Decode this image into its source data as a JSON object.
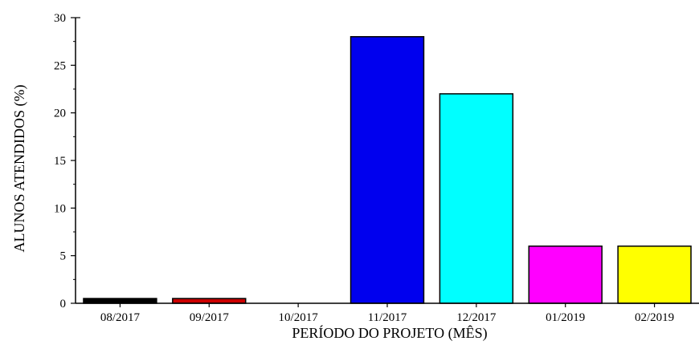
{
  "chart_data": {
    "type": "bar",
    "title": "",
    "xlabel": "PERÍODO DO PROJETO (MÊS)",
    "ylabel": "ALUNOS ATENDIDOS (%)",
    "categories": [
      "08/2017",
      "09/2017",
      "10/2017",
      "11/2017",
      "12/2017",
      "01/2019",
      "02/2019"
    ],
    "values": [
      0.5,
      0.5,
      0,
      28,
      22,
      6,
      6
    ],
    "colors": [
      "#000000",
      "#cc0000",
      "#ffffff",
      "#0000ee",
      "#00ffff",
      "#ff00ff",
      "#ffff00"
    ],
    "ylim": [
      0,
      30
    ],
    "yticks": [
      0,
      5,
      10,
      15,
      20,
      25,
      30
    ],
    "ytick_labels": [
      "0",
      "5",
      "10",
      "15",
      "20",
      "25",
      "30"
    ],
    "grid": false,
    "legend": "none"
  }
}
